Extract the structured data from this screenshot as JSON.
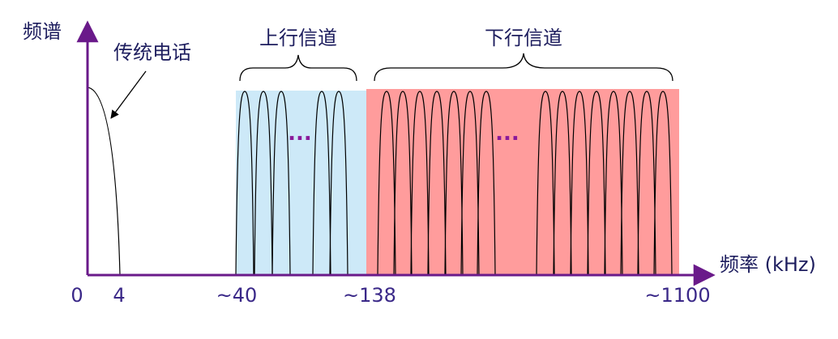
{
  "axes": {
    "y_label": "频谱",
    "x_label": "频率 (kHz)",
    "x_ticks": [
      "0",
      "4",
      "~40",
      "~138",
      "~1100"
    ]
  },
  "regions": {
    "telephone": "传统电话",
    "upstream": "上行信道",
    "downstream": "下行信道"
  },
  "ellipses": [
    "···",
    "···"
  ]
}
